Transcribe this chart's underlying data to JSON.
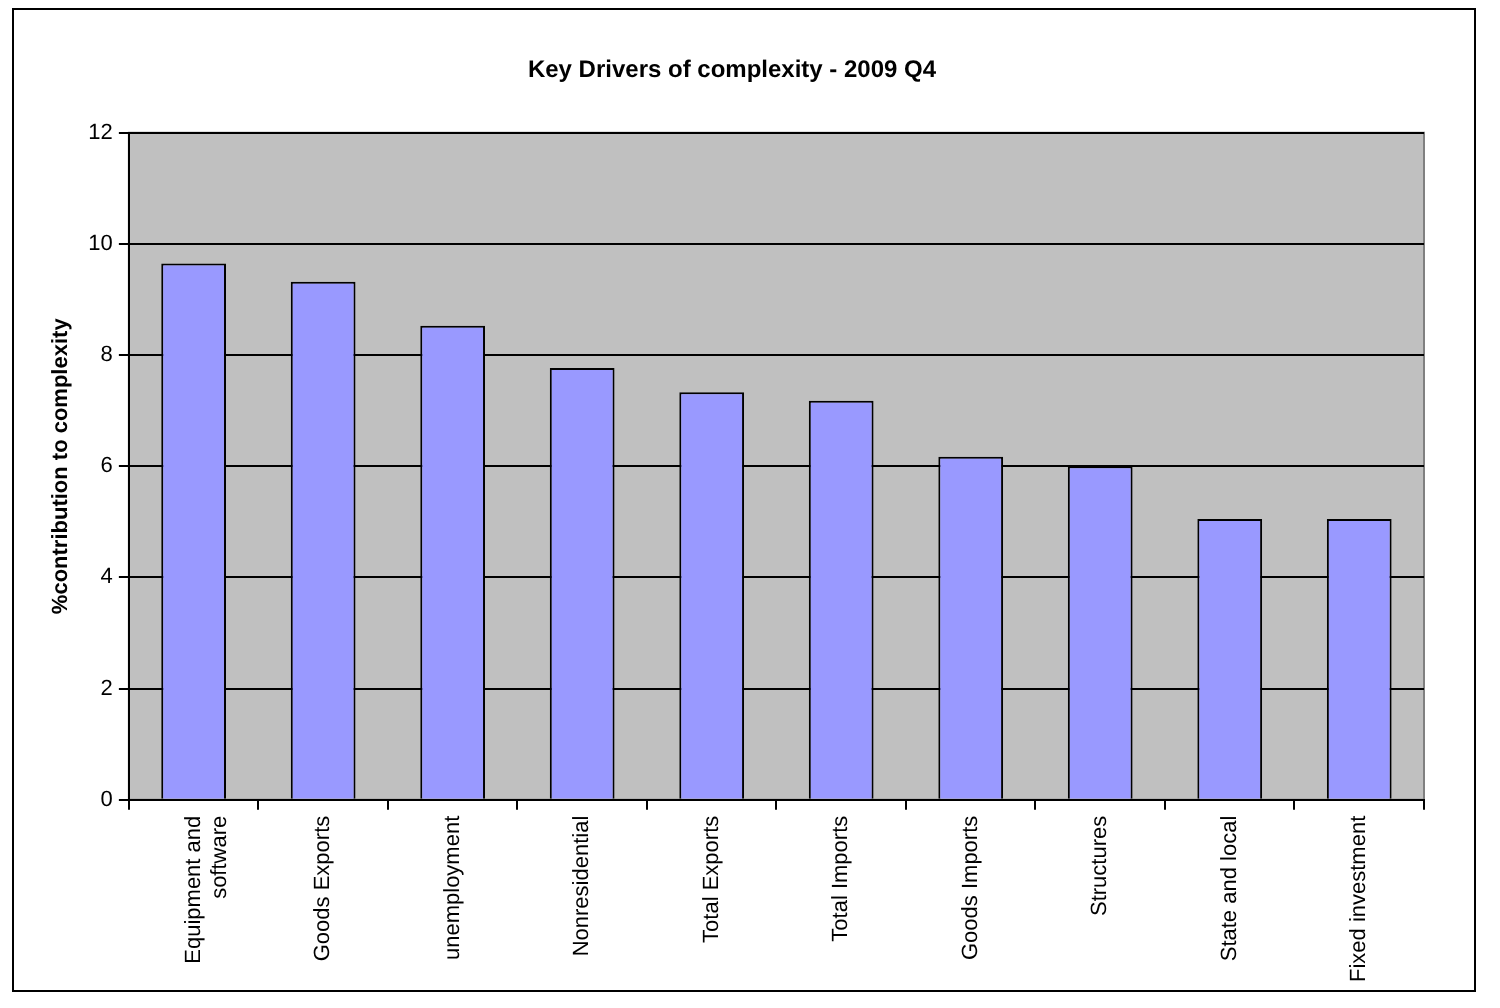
{
  "chart_data": {
    "type": "bar",
    "title": "Key Drivers of complexity - 2009 Q4",
    "ylabel": "%contribution to complexity",
    "categories": [
      "Equipment and software",
      "Goods Exports",
      "unemployment",
      "Nonresidential",
      "Total Exports",
      "Total Imports",
      "Goods Imports",
      "Structures",
      "State and local",
      "Fixed investment"
    ],
    "values": [
      9.65,
      9.32,
      8.53,
      7.77,
      7.33,
      7.18,
      6.17,
      6.0,
      5.05,
      5.05
    ],
    "color": "#9999ff",
    "ylim": [
      0,
      12
    ],
    "yticks": [
      0,
      2,
      4,
      6,
      8,
      10,
      12
    ],
    "grid": "y",
    "legend": false
  }
}
